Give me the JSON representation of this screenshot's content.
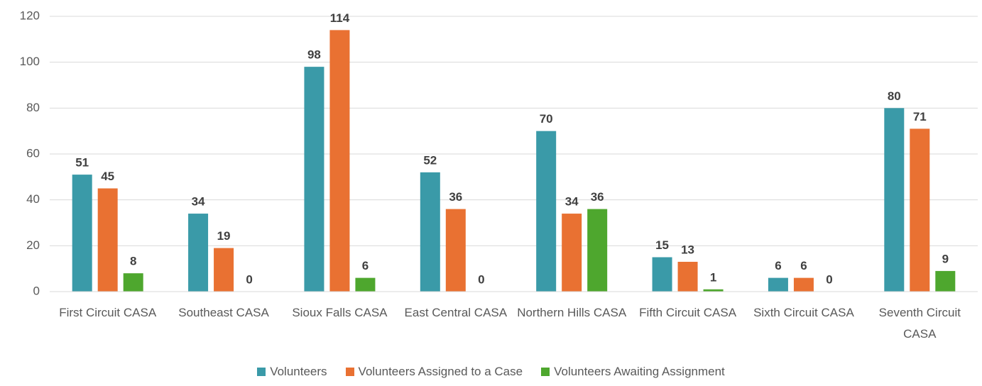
{
  "chart_data": {
    "type": "bar",
    "categories": [
      "First Circuit CASA",
      "Southeast CASA",
      "Sioux Falls CASA",
      "East Central CASA",
      "Northern Hills CASA",
      "Fifth Circuit CASA",
      "Sixth Circuit CASA",
      "Seventh Circuit CASA"
    ],
    "series": [
      {
        "name": "Volunteers",
        "color": "#3a9aa8",
        "values": [
          51,
          34,
          98,
          52,
          70,
          15,
          6,
          80
        ]
      },
      {
        "name": "Volunteers Assigned to a Case",
        "color": "#e97132",
        "values": [
          45,
          19,
          114,
          36,
          34,
          13,
          6,
          71
        ]
      },
      {
        "name": "Volunteers Awaiting Assignment",
        "color": "#4ea72e",
        "values": [
          8,
          0,
          6,
          0,
          36,
          1,
          0,
          9
        ]
      }
    ],
    "ylim": [
      0,
      120
    ],
    "yticks": [
      0,
      20,
      40,
      60,
      80,
      100,
      120
    ],
    "grid": true,
    "legend": "bottom"
  }
}
